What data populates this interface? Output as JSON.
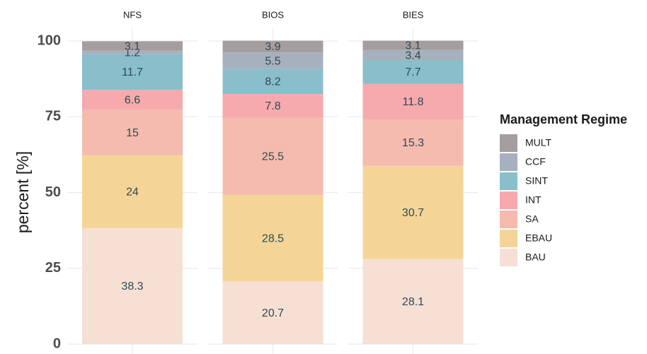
{
  "chart_data": {
    "type": "bar",
    "stacked": true,
    "categories": [
      "NFS",
      "BIOS",
      "BIES"
    ],
    "y_label": "percent [%]",
    "legend_title": "Management Regime",
    "ylim": [
      0,
      100
    ],
    "yticks": [
      0,
      25,
      50,
      75,
      100
    ],
    "grid": true,
    "series": [
      {
        "name": "BAU",
        "color": "#f6e0d3",
        "values": [
          38.3,
          20.7,
          28.1
        ]
      },
      {
        "name": "EBAU",
        "color": "#f4d597",
        "values": [
          24,
          28.5,
          30.7
        ]
      },
      {
        "name": "SA",
        "color": "#f4bbae",
        "values": [
          15,
          25.5,
          15.3
        ]
      },
      {
        "name": "INT",
        "color": "#f6aaae",
        "values": [
          6.6,
          7.8,
          11.8
        ]
      },
      {
        "name": "SINT",
        "color": "#88bfcb",
        "values": [
          11.7,
          8.2,
          7.7
        ]
      },
      {
        "name": "CCF",
        "color": "#a7b0bf",
        "values": [
          1.2,
          5.5,
          3.4
        ]
      },
      {
        "name": "MULT",
        "color": "#a59e9e",
        "values": [
          3.1,
          3.9,
          3.1
        ]
      }
    ]
  }
}
